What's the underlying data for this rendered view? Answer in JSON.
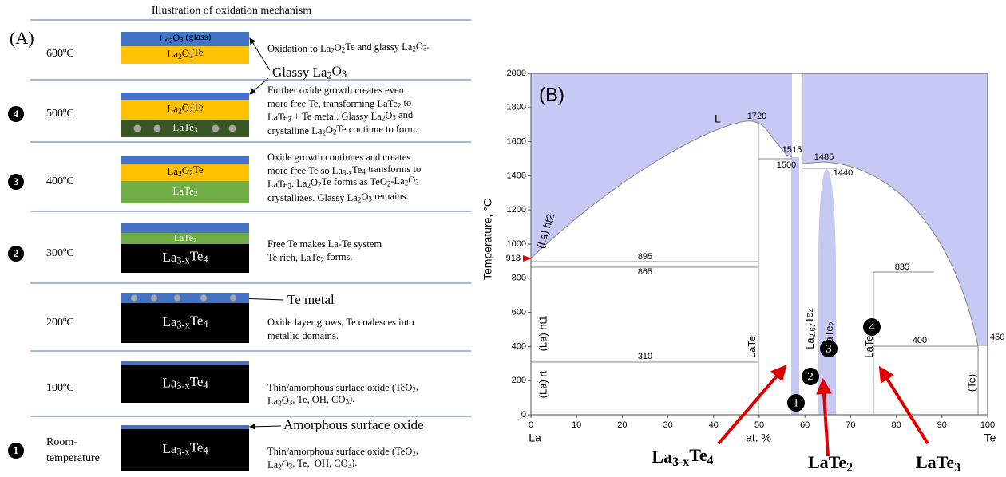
{
  "figure_title": "Illustration of oxidation mechanism",
  "panel_a": {
    "label": "(A)",
    "stages": [
      {
        "temperature": [
          "600ºC"
        ],
        "layers": [
          {
            "label": "La2O3 (glass)",
            "color": "#4472c4",
            "text_color": "#000000"
          },
          {
            "label": "La2O2Te",
            "color": "#ffc000",
            "text_color": "#000000"
          }
        ],
        "description": [
          "Oxidation to La2O2Te and glassy La2O3."
        ]
      },
      {
        "step": 4,
        "temperature": [
          "500ºC"
        ],
        "layers": [
          {
            "color": "#4472c4"
          },
          {
            "label": "La2O2Te",
            "color": "#ffc000",
            "text_color": "#000000"
          },
          {
            "label": "LaTe3",
            "color": "#375623",
            "text_color": "#ffffff",
            "dots": true
          }
        ],
        "description": [
          "Further oxide growth creates even",
          "more free Te, transforming LaTe2 to",
          "LaTe3 + Te metal. Glassy La2O3 and",
          "crystalline La2O2Te continue to form."
        ]
      },
      {
        "step": 3,
        "temperature": [
          "400ºC"
        ],
        "layers": [
          {
            "color": "#4472c4"
          },
          {
            "label": "La2O2Te",
            "color": "#ffc000",
            "text_color": "#000000"
          },
          {
            "label": "LaTe2",
            "color": "#70ad47",
            "text_color": "#ffffff"
          }
        ],
        "description": [
          "Oxide growth continues and creates",
          "more free Te so La3-xTe4 transforms to",
          "LaTe2. La2O2Te forms as TeO2-La2O3",
          "crystallizes. Glassy La2O3 remains."
        ]
      },
      {
        "step": 2,
        "temperature": [
          "300ºC"
        ],
        "layers": [
          {
            "color": "#4472c4"
          },
          {
            "label": "LaTe2",
            "color": "#70ad47",
            "text_color": "#ffffff"
          },
          {
            "label": "La3-xTe4",
            "color": "#000000",
            "text_color": "#ffffff"
          }
        ],
        "description": [
          "Free Te makes La-Te system",
          "Te rich, LaTe2 forms."
        ]
      },
      {
        "temperature": [
          "200ºC"
        ],
        "layers": [
          {
            "color": "#4472c4",
            "dots": true
          },
          {
            "label": "La3-xTe4",
            "color": "#000000",
            "text_color": "#ffffff"
          }
        ],
        "description": [
          "Oxide layer grows, Te coalesces into",
          "metallic domains."
        ]
      },
      {
        "temperature": [
          "100ºC"
        ],
        "layers": [
          {
            "color": "#4472c4"
          },
          {
            "label": "La3-xTe4",
            "color": "#000000",
            "text_color": "#ffffff"
          }
        ],
        "description": [
          "Thin/amorphous surface oxide (TeO2,",
          "La2O3, Te, OH, CO3)."
        ]
      },
      {
        "step": 1,
        "temperature": [
          "Room-",
          "temperature"
        ],
        "layers": [
          {
            "color": "#4472c4"
          },
          {
            "label": "La3-xTe4",
            "color": "#000000",
            "text_color": "#ffffff"
          }
        ],
        "description": [
          "Thin/amorphous surface oxide (TeO2,",
          "La2O3, Te,  OH, CO3)."
        ]
      }
    ],
    "callouts": [
      "Glassy La2O3",
      "Te metal",
      "Amorphous surface oxide"
    ]
  },
  "chart_data": {
    "type": "phase",
    "panel_label": "(B)",
    "region_label": "L",
    "x_label": "at. %",
    "y_label": "Temperature, °C",
    "x_end_labels": [
      "La",
      "Te"
    ],
    "xlim": [
      0,
      100
    ],
    "ylim": [
      0,
      2000
    ],
    "xticks": [
      0,
      10,
      20,
      30,
      40,
      50,
      60,
      70,
      80,
      90,
      100
    ],
    "yticks": [
      0,
      200,
      400,
      600,
      800,
      1000,
      1200,
      1400,
      1600,
      1800,
      2000
    ],
    "fill_color": "#c8c8f4",
    "temperature_labels": [
      1720,
      1515,
      1485,
      1500,
      1440,
      895,
      865,
      835,
      310,
      400,
      450,
      918
    ],
    "phase_labels": [
      "(La) ht2",
      "(La) ht1",
      "(La) rt",
      "LaTe",
      "La2.67Te4",
      "LaTe2",
      "LaTe3",
      "(Te)"
    ],
    "markers": [
      1,
      2,
      3,
      4
    ],
    "callouts": [
      "La3-xTe4",
      "LaTe2",
      "LaTe3"
    ]
  }
}
